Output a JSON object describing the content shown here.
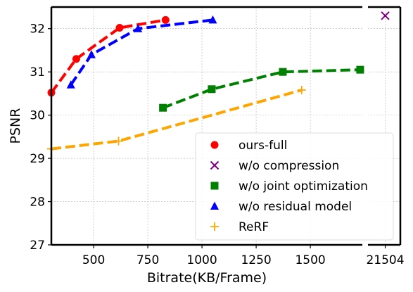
{
  "chart_data": {
    "type": "line",
    "xlabel": "Bitrate(KB/Frame)",
    "ylabel": "PSNR",
    "ylim": [
      27,
      32.5
    ],
    "xlim_main": [
      305,
      1740
    ],
    "xlim_break": [
      21440,
      21560
    ],
    "broken_x_axis": true,
    "grid": true,
    "legend_position": "lower right",
    "x_ticks": [
      {
        "value": 500,
        "label": "500"
      },
      {
        "value": 750,
        "label": "750"
      },
      {
        "value": 1000,
        "label": "1000"
      },
      {
        "value": 1250,
        "label": "1250"
      },
      {
        "value": 1500,
        "label": "1500"
      },
      {
        "value": 21504,
        "label": "21504"
      }
    ],
    "y_ticks": [
      {
        "value": 27,
        "label": "27"
      },
      {
        "value": 28,
        "label": "28"
      },
      {
        "value": 29,
        "label": "29"
      },
      {
        "value": 30,
        "label": "30"
      },
      {
        "value": 31,
        "label": "31"
      },
      {
        "value": 32,
        "label": "32"
      }
    ],
    "series": [
      {
        "name": "ours-full",
        "color": "#ff0000",
        "marker": "circle",
        "line": true,
        "x": [
          305,
          420,
          620,
          832
        ],
        "y": [
          30.52,
          31.3,
          32.02,
          32.2
        ]
      },
      {
        "name": "w/o compression",
        "color": "#800080",
        "marker": "x",
        "line": false,
        "x": [
          21504
        ],
        "y": [
          32.3
        ]
      },
      {
        "name": "w/o joint optimization",
        "color": "#008000",
        "marker": "square",
        "line": true,
        "x": [
          820,
          1045,
          1373,
          1730
        ],
        "y": [
          30.17,
          30.6,
          31.0,
          31.05
        ]
      },
      {
        "name": "w/o residual model",
        "color": "#0000ff",
        "marker": "triangle",
        "line": true,
        "x": [
          395,
          490,
          705,
          1050
        ],
        "y": [
          30.7,
          31.4,
          32.0,
          32.2
        ]
      },
      {
        "name": "ReRF",
        "color": "#ffa500",
        "marker": "plus",
        "line": true,
        "x": [
          305,
          615,
          1460
        ],
        "y": [
          29.22,
          29.4,
          30.58
        ]
      }
    ]
  }
}
